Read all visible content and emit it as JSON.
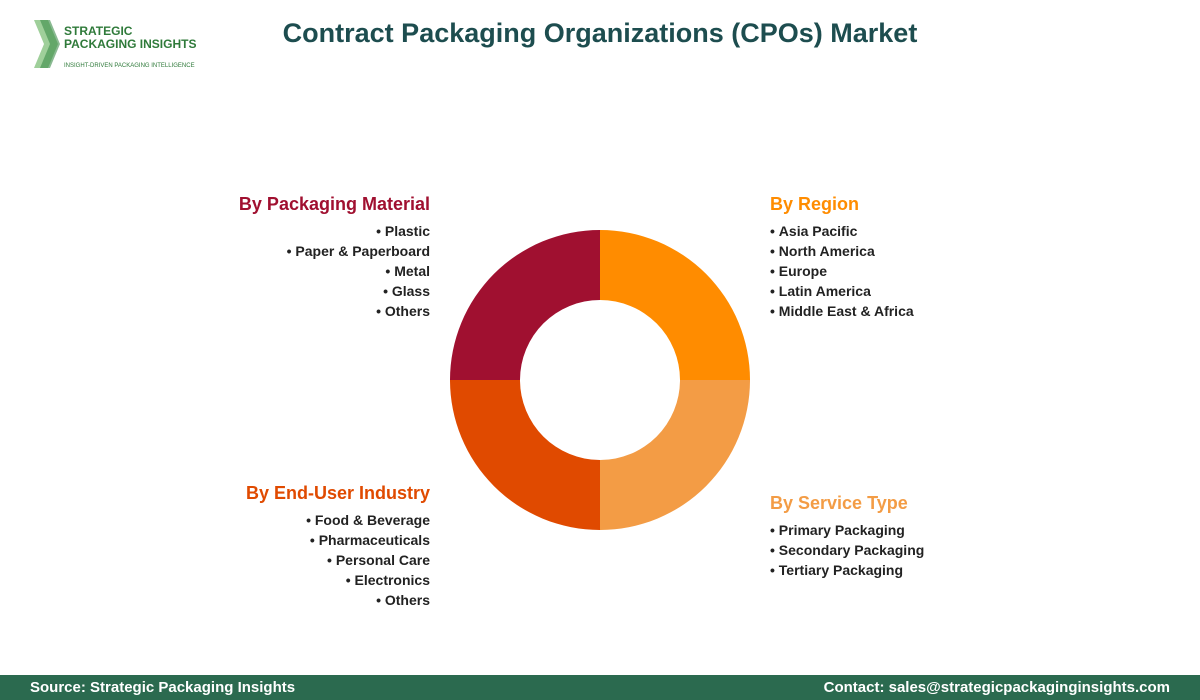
{
  "logo": {
    "line1": "STRATEGIC",
    "line2": "PACKAGING INSIGHTS",
    "tagline": "INSIGHT-DRIVEN PACKAGING INTELLIGENCE"
  },
  "title": "Contract Packaging Organizations (CPOs) Market",
  "segments": [
    {
      "heading": "By Packaging Material",
      "items": [
        "Plastic",
        "Paper & Paperboard",
        "Metal",
        "Glass",
        "Others"
      ]
    },
    {
      "heading": "By Region",
      "items": [
        "Asia Pacific",
        "North America",
        "Europe",
        "Latin America",
        "Middle East & Africa"
      ]
    },
    {
      "heading": "By End-User Industry",
      "items": [
        "Food & Beverage",
        "Pharmaceuticals",
        "Personal Care",
        "Electronics",
        "Others"
      ]
    },
    {
      "heading": "By Service Type",
      "items": [
        "Primary Packaging",
        "Secondary Packaging",
        "Tertiary Packaging"
      ]
    }
  ],
  "footer": {
    "source": "Source: Strategic Packaging Insights",
    "contact": "Contact: sales@strategicpackaginginsights.com"
  }
}
